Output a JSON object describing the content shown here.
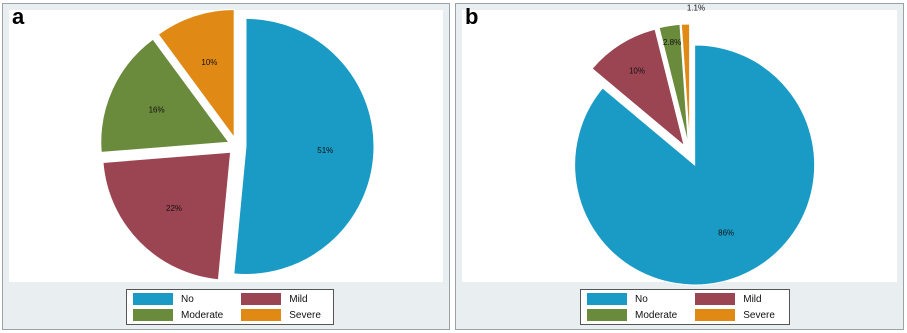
{
  "chart_data": [
    {
      "type": "pie",
      "panel": "a",
      "categories": [
        "No",
        "Mild",
        "Moderate",
        "Severe"
      ],
      "values": [
        51,
        22,
        16,
        10
      ],
      "labels": [
        "51%",
        "22%",
        "16%",
        "10%"
      ],
      "colors": [
        "#1a9bc6",
        "#9b4553",
        "#6a8a3c",
        "#e08a15"
      ],
      "exploded": true,
      "legend_position": "bottom"
    },
    {
      "type": "pie",
      "panel": "b",
      "categories": [
        "No",
        "Mild",
        "Moderate",
        "Severe"
      ],
      "values": [
        86,
        10,
        2.8,
        1.1
      ],
      "labels": [
        "86%",
        "10%",
        "2.8%",
        "1.1%"
      ],
      "colors": [
        "#1a9bc6",
        "#9b4553",
        "#6a8a3c",
        "#e08a15"
      ],
      "exploded": true,
      "legend_position": "bottom"
    }
  ],
  "panels": {
    "a": {
      "letter": "a"
    },
    "b": {
      "letter": "b"
    }
  },
  "legend": {
    "items": [
      {
        "label": "No",
        "color": "#1a9bc6"
      },
      {
        "label": "Mild",
        "color": "#9b4553"
      },
      {
        "label": "Moderate",
        "color": "#6a8a3c"
      },
      {
        "label": "Severe",
        "color": "#e08a15"
      }
    ]
  }
}
